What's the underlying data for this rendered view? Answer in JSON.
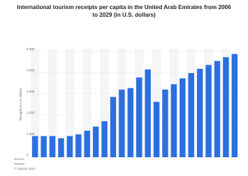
{
  "chart_data": {
    "type": "bar",
    "title": "International tourism receipts per capita in the United Arab Emirates from 2006 to 2029 (in U.S. dollars)",
    "y_label": "Receipts in U.S. dollars",
    "source": [
      "Source",
      "Statista",
      "© Statista 2024"
    ],
    "categories": [
      null,
      null,
      null,
      null,
      null,
      null,
      null,
      null,
      null,
      null,
      null,
      null,
      null,
      null,
      null,
      null,
      null,
      null,
      null,
      null,
      null,
      null,
      null,
      null
    ],
    "values": [
      1000,
      1000,
      1000,
      900,
      1000,
      1080,
      1250,
      1450,
      1700,
      2850,
      3200,
      3270,
      3770,
      4150,
      2620,
      3200,
      3450,
      3730,
      3980,
      4180,
      4360,
      4550,
      4730,
      4880
    ],
    "color": "#2b6fe0",
    "ylim": [
      0,
      5000
    ],
    "yticks": [
      0,
      {
        "value": 1000,
        "label": "1,000"
      },
      {
        "value": 2000,
        "label": "2,000"
      },
      {
        "value": 3000,
        "label": "3,000"
      },
      {
        "value": 4000,
        "label": "4,000"
      },
      {
        "value": 5000,
        "label": "5,000"
      }
    ],
    "grid": true
  }
}
